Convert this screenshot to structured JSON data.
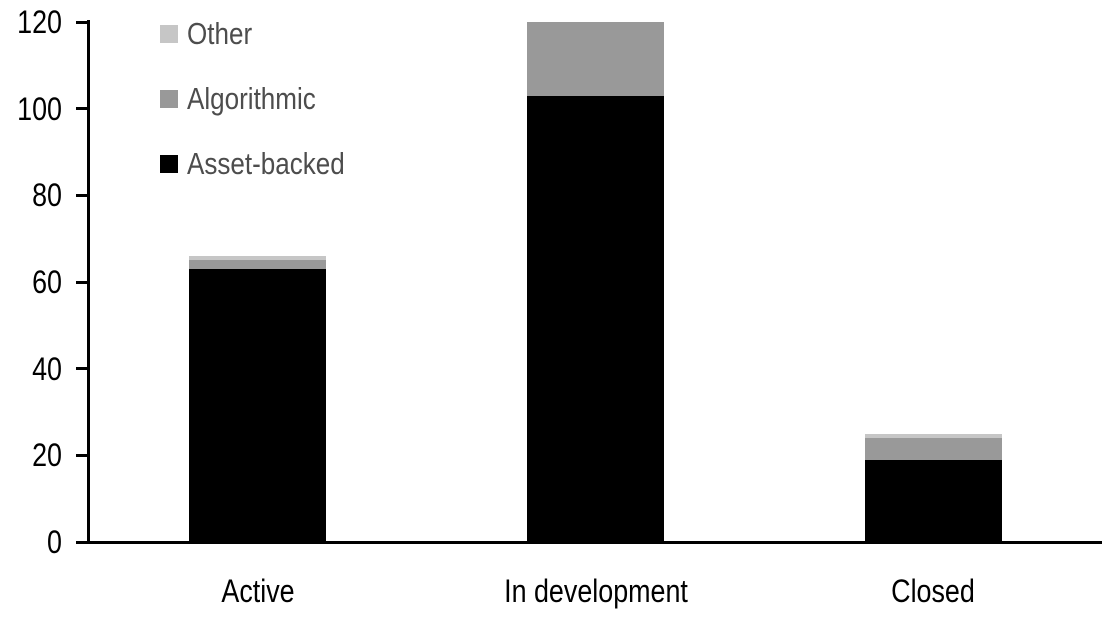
{
  "chart_data": {
    "type": "bar",
    "stacked": true,
    "title": "",
    "xlabel": "",
    "ylabel": "",
    "categories": [
      "Active",
      "In development",
      "Closed"
    ],
    "series": [
      {
        "name": "Asset-backed",
        "color": "#000000",
        "values": [
          63,
          103,
          19
        ]
      },
      {
        "name": "Algorithmic",
        "color": "#999999",
        "values": [
          2,
          17,
          5
        ]
      },
      {
        "name": "Other",
        "color": "#c6c6c6",
        "values": [
          1,
          0,
          1
        ]
      }
    ],
    "legend_order_top_to_bottom": [
      "Other",
      "Algorithmic",
      "Asset-backed"
    ],
    "legend_position": "top-left-inside",
    "ylim": [
      0,
      120
    ],
    "yticks": [
      0,
      20,
      40,
      60,
      80,
      100,
      120
    ],
    "grid": false
  },
  "colors": {
    "background": "#ffffff",
    "axis": "#000000",
    "axis_label_text": "#000000",
    "legend_text": "#4d4d4d"
  }
}
